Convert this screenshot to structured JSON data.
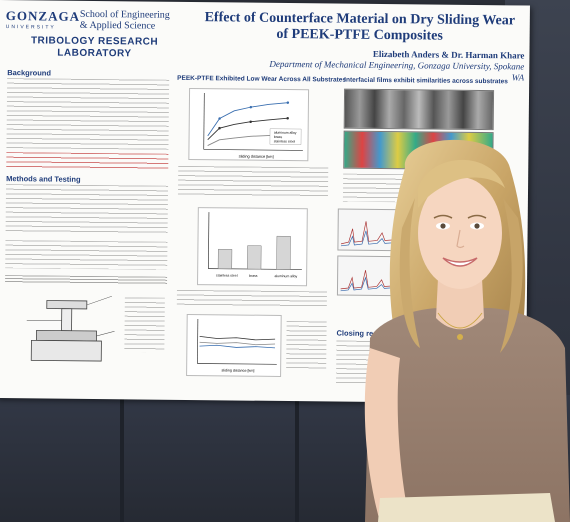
{
  "poster": {
    "logo_name": "GONZAGA",
    "logo_sub": "UNIVERSITY",
    "school": [
      "School of Engineering",
      "& Applied Science"
    ],
    "lab_name": [
      "TRIBOLOGY RESEARCH",
      "LABORATORY"
    ],
    "title": [
      "Effect of Counterface Material on Dry Sliding Wear",
      "of PEEK-PTFE Composites"
    ],
    "authors": "Elizabeth Anders & Dr. Harman Khare",
    "department": "Department of Mechanical Engineering, Gonzaga University, Spokane WA",
    "sections": {
      "background": "Background",
      "methods": "Methods and Testing",
      "low_wear": "PEEK-PTFE Exhibited Low Wear Across All Substrates",
      "interfacial": "Interfacial films exhibit similarities across substrates",
      "closing": "Closing re"
    },
    "legend": [
      "aluminum alloy",
      "brass",
      "stainless steel"
    ],
    "xlabel_1": "sliding distance [km]",
    "bar_labels": [
      "stainless steel",
      "brass",
      "aluminum alloy"
    ],
    "xlabel_3": "sliding distance [km]"
  },
  "colors": {
    "poster_bg": "#fbfbf9",
    "accent": "#1f3c7a",
    "highlight": "#b22222",
    "board": "#2b2f38"
  }
}
